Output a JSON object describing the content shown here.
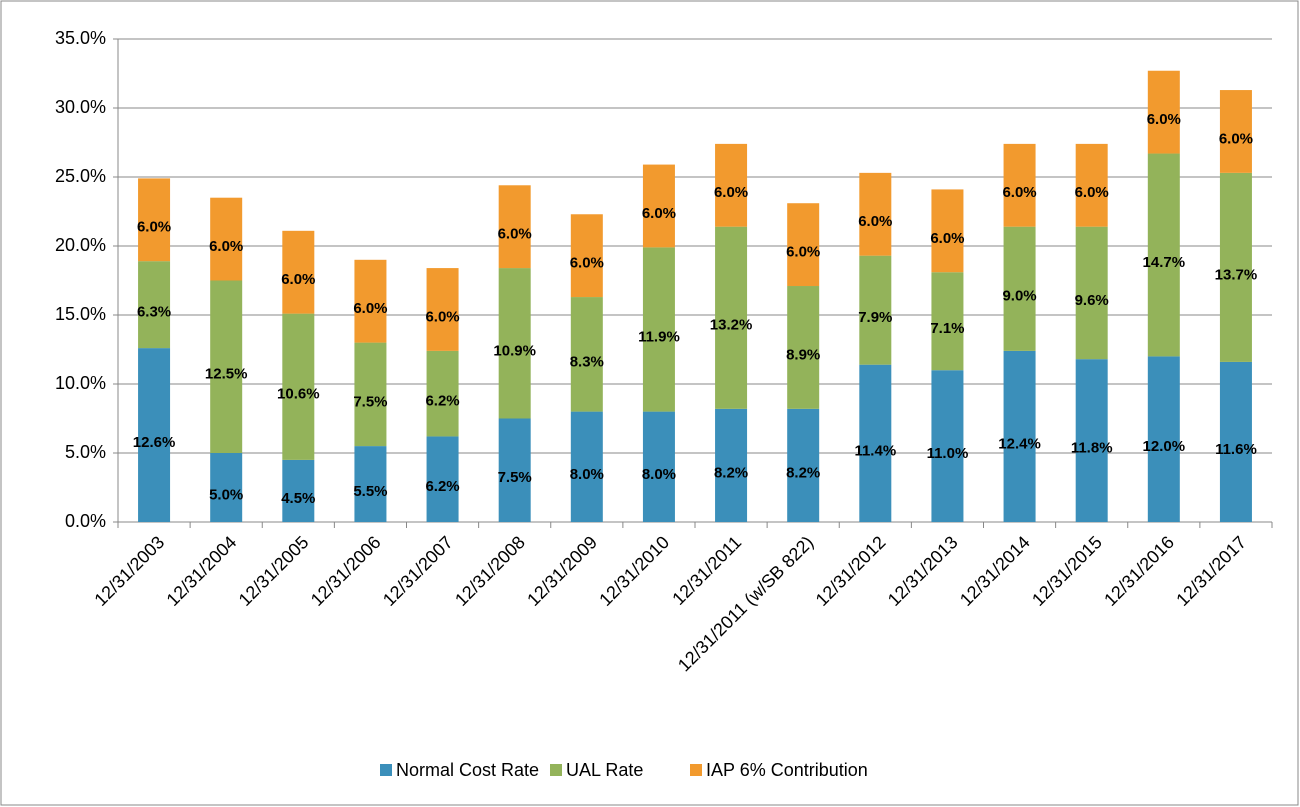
{
  "chart_data": {
    "type": "stacked_bar",
    "categories": [
      "12/31/2003",
      "12/31/2004",
      "12/31/2005",
      "12/31/2006",
      "12/31/2007",
      "12/31/2008",
      "12/31/2009",
      "12/31/2010",
      "12/31/2011",
      "12/31/2011 (w/SB 822)",
      "12/31/2012",
      "12/31/2013",
      "12/31/2014",
      "12/31/2015",
      "12/31/2016",
      "12/31/2017"
    ],
    "series": [
      {
        "name": "Normal Cost Rate",
        "color": "#3b8fba",
        "values": [
          12.6,
          5.0,
          4.5,
          5.5,
          6.2,
          7.5,
          8.0,
          8.0,
          8.2,
          8.2,
          11.4,
          11.0,
          12.4,
          11.8,
          12.0,
          11.6
        ],
        "value_labels": [
          "12.6%",
          "5.0%",
          "4.5%",
          "5.5%",
          "6.2%",
          "7.5%",
          "8.0%",
          "8.0%",
          "8.2%",
          "8.2%",
          "11.4%",
          "11.0%",
          "12.4%",
          "11.8%",
          "12.0%",
          "11.6%"
        ]
      },
      {
        "name": "UAL Rate",
        "color": "#93b35a",
        "values": [
          6.3,
          12.5,
          10.6,
          7.5,
          6.2,
          10.9,
          8.3,
          11.9,
          13.2,
          8.9,
          7.9,
          7.1,
          9.0,
          9.6,
          14.7,
          13.7
        ],
        "value_labels": [
          "6.3%",
          "12.5%",
          "10.6%",
          "7.5%",
          "6.2%",
          "10.9%",
          "8.3%",
          "11.9%",
          "13.2%",
          "8.9%",
          "7.9%",
          "7.1%",
          "9.0%",
          "9.6%",
          "14.7%",
          "13.7%"
        ]
      },
      {
        "name": "IAP 6% Contribution",
        "color": "#f29a2e",
        "values": [
          6.0,
          6.0,
          6.0,
          6.0,
          6.0,
          6.0,
          6.0,
          6.0,
          6.0,
          6.0,
          6.0,
          6.0,
          6.0,
          6.0,
          6.0,
          6.0
        ],
        "value_labels": [
          "6.0%",
          "6.0%",
          "6.0%",
          "6.0%",
          "6.0%",
          "6.0%",
          "6.0%",
          "6.0%",
          "6.0%",
          "6.0%",
          "6.0%",
          "6.0%",
          "6.0%",
          "6.0%",
          "6.0%",
          "6.0%"
        ]
      }
    ],
    "ylim": [
      0,
      35
    ],
    "yticks": [
      {
        "value": 0,
        "label": "0.0%"
      },
      {
        "value": 5,
        "label": "5.0%"
      },
      {
        "value": 10,
        "label": "10.0%"
      },
      {
        "value": 15,
        "label": "15.0%"
      },
      {
        "value": 20,
        "label": "20.0%"
      },
      {
        "value": 25,
        "label": "25.0%"
      },
      {
        "value": 30,
        "label": "30.0%"
      },
      {
        "value": 35,
        "label": "35.0%"
      }
    ],
    "grid": true,
    "legend": "bottom"
  }
}
